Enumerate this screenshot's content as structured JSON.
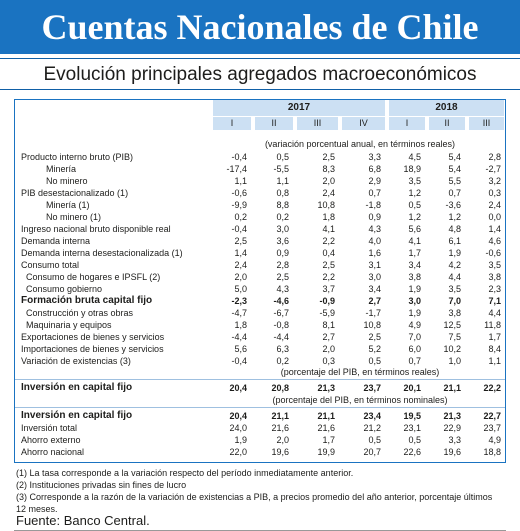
{
  "title": "Cuentas Nacionales de Chile",
  "subtitle": "Evolución principales agregados macroeconómicos",
  "table": {
    "years": [
      "2017",
      "2018"
    ],
    "quarters_2017": [
      "I",
      "II",
      "III",
      "IV"
    ],
    "quarters_2018": [
      "I",
      "II",
      "III"
    ],
    "note1": "(variación porcentual anual, en términos reales)",
    "note2": "(porcentaje del PIB, en términos reales)",
    "note3": "(porcentaje del PIB, en términos nominales)",
    "rows": [
      {
        "label": "Producto interno bruto (PIB)",
        "values": [
          "-0,4",
          "0,5",
          "2,5",
          "3,3",
          "4,5",
          "5,4",
          "2,8"
        ]
      },
      {
        "label": "Minería",
        "values": [
          "-17,4",
          "-5,5",
          "8,3",
          "6,8",
          "18,9",
          "5,4",
          "-2,7"
        ]
      },
      {
        "label": "No minero",
        "values": [
          "1,1",
          "1,1",
          "2,0",
          "2,9",
          "3,5",
          "5,5",
          "3,2"
        ]
      },
      {
        "label": "PIB desestacionalizado (1)",
        "values": [
          "-0,6",
          "0,8",
          "2,4",
          "0,7",
          "1,2",
          "0,7",
          "0,3"
        ]
      },
      {
        "label": "Minería (1)",
        "values": [
          "-9,9",
          "8,8",
          "10,8",
          "-1,8",
          "0,5",
          "-3,6",
          "2,4"
        ]
      },
      {
        "label": "No minero (1)",
        "values": [
          "0,2",
          "0,2",
          "1,8",
          "0,9",
          "1,2",
          "1,2",
          "0,0"
        ]
      },
      {
        "label": "Ingreso nacional bruto disponible real",
        "values": [
          "-0,4",
          "3,0",
          "4,1",
          "4,3",
          "5,6",
          "4,8",
          "1,4"
        ]
      },
      {
        "label": "Demanda interna",
        "values": [
          "2,5",
          "3,6",
          "2,2",
          "4,0",
          "4,1",
          "6,1",
          "4,6"
        ]
      },
      {
        "label": "Demanda interna desestacionalizada (1)",
        "values": [
          "1,4",
          "0,9",
          "0,4",
          "1,6",
          "1,7",
          "1,9",
          "-0,6"
        ]
      },
      {
        "label": "Consumo total",
        "values": [
          "2,4",
          "2,8",
          "2,5",
          "3,1",
          "3,4",
          "4,2",
          "3,5"
        ]
      },
      {
        "label": "Consumo de hogares e IPSFL (2)",
        "values": [
          "2,0",
          "2,5",
          "2,2",
          "3,0",
          "3,8",
          "4,4",
          "3,8"
        ]
      },
      {
        "label": "Consumo gobierno",
        "values": [
          "5,0",
          "4,3",
          "3,7",
          "3,4",
          "1,9",
          "3,5",
          "2,3"
        ]
      },
      {
        "label": "Formación bruta capital fijo",
        "values": [
          "-2,3",
          "-4,6",
          "-0,9",
          "2,7",
          "3,0",
          "7,0",
          "7,1"
        ]
      },
      {
        "label": "Construcción y otras obras",
        "values": [
          "-4,7",
          "-6,7",
          "-5,9",
          "-1,7",
          "1,9",
          "3,8",
          "4,4"
        ]
      },
      {
        "label": "Maquinaria y equipos",
        "values": [
          "1,8",
          "-0,8",
          "8,1",
          "10,8",
          "4,9",
          "12,5",
          "11,8"
        ]
      },
      {
        "label": "Exportaciones de bienes y servicios",
        "values": [
          "-4,4",
          "-4,4",
          "2,7",
          "2,5",
          "7,0",
          "7,5",
          "1,7"
        ]
      },
      {
        "label": "Importaciones de bienes y servicios",
        "values": [
          "5,6",
          "6,3",
          "2,0",
          "5,2",
          "6,0",
          "10,2",
          "8,4"
        ]
      },
      {
        "label": "Variación de existencias (3)",
        "values": [
          "-0,4",
          "0,2",
          "0,3",
          "0,5",
          "0,7",
          "1,0",
          "1,1"
        ]
      },
      {
        "label": "Inversión en capital fijo",
        "values": [
          "20,4",
          "20,8",
          "21,3",
          "23,7",
          "20,1",
          "21,1",
          "22,2"
        ]
      },
      {
        "label": "Inversión en capital fijo",
        "values": [
          "20,4",
          "21,1",
          "21,1",
          "23,4",
          "19,5",
          "21,3",
          "22,7"
        ]
      },
      {
        "label": "Inversión total",
        "values": [
          "24,0",
          "21,6",
          "21,6",
          "21,2",
          "23,1",
          "22,9",
          "23,7"
        ]
      },
      {
        "label": "Ahorro externo",
        "values": [
          "1,9",
          "2,0",
          "1,7",
          "0,5",
          "0,5",
          "3,3",
          "4,9"
        ]
      },
      {
        "label": "Ahorro nacional",
        "values": [
          "22,0",
          "19,6",
          "19,9",
          "20,7",
          "22,6",
          "19,6",
          "18,8"
        ]
      }
    ]
  },
  "footnotes": [
    "(1) La tasa corresponde a la variación respecto del período inmediatamente anterior.",
    "(2) Instituciones privadas sin fines de lucro",
    "(3) Corresponde a la razón de la variación de existencias a PIB, a precios promedio del año anterior, porcentaje últimos 12 meses."
  ],
  "source": "Fuente: Banco Central."
}
